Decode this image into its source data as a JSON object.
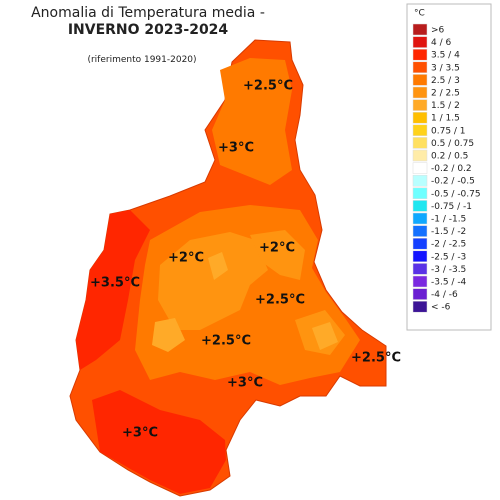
{
  "header": {
    "title": "Anomalia di Temperatura media -",
    "season": "INVERNO 2023-2024",
    "reference": "(riferimento 1991-2020)"
  },
  "legend": {
    "unit": "°C",
    "items": [
      {
        "label": ">6",
        "color": "#b81c1c"
      },
      {
        "label": "4 / 6",
        "color": "#e0140f"
      },
      {
        "label": "3.5 / 4",
        "color": "#ff2600"
      },
      {
        "label": "3 / 3.5",
        "color": "#ff5000"
      },
      {
        "label": "2.5 / 3",
        "color": "#ff7a00"
      },
      {
        "label": "2 / 2.5",
        "color": "#ff9410"
      },
      {
        "label": "1.5 / 2",
        "color": "#ffaa28"
      },
      {
        "label": "1 / 1.5",
        "color": "#ffbf00"
      },
      {
        "label": "0.75 / 1",
        "color": "#ffd21a"
      },
      {
        "label": "0.5 / 0.75",
        "color": "#ffe060"
      },
      {
        "label": "0.2 / 0.5",
        "color": "#ffeca8"
      },
      {
        "label": "-0.2 / 0.2",
        "color": "#ffffff"
      },
      {
        "label": "-0.2 / -0.5",
        "color": "#b8ffff"
      },
      {
        "label": "-0.5 / -0.75",
        "color": "#6effff"
      },
      {
        "label": "-0.75 / -1",
        "color": "#1ee6f0"
      },
      {
        "label": "-1 / -1.5",
        "color": "#0fa8ff"
      },
      {
        "label": "-1.5 / -2",
        "color": "#1470ff"
      },
      {
        "label": "-2 / -2.5",
        "color": "#1440ff"
      },
      {
        "label": "-2.5 / -3",
        "color": "#1414ff"
      },
      {
        "label": "-3 / -3.5",
        "color": "#5a32e6"
      },
      {
        "label": "-3.5 / -4",
        "color": "#7a28e0"
      },
      {
        "label": "-4 / -6",
        "color": "#6a1ed2"
      },
      {
        "label": "< -6",
        "color": "#3c1496"
      }
    ]
  },
  "map": {
    "annotations": [
      "+2.5°C",
      "+3°C",
      "+2°C",
      "+2°C",
      "+3.5°C",
      "+2.5°C",
      "+2.5°C",
      "+2.5°C",
      "+3°C",
      "+3°C"
    ]
  }
}
